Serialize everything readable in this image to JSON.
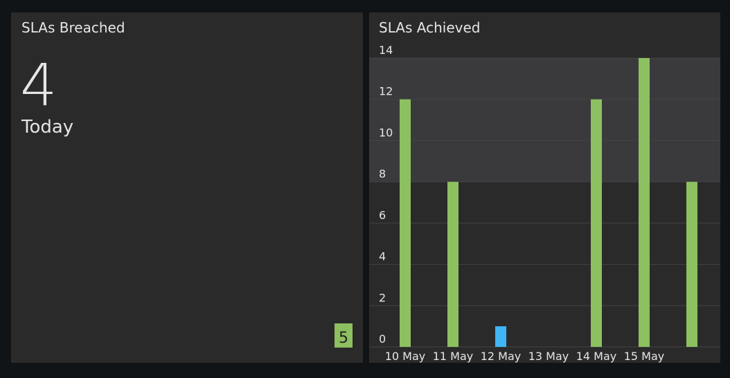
{
  "breached_panel": {
    "title": "SLAs Breached",
    "value": 4,
    "period": "Today",
    "badge": 5
  },
  "chart_data": {
    "type": "bar",
    "title": "SLAs Achieved",
    "categories": [
      "10 May",
      "11 May",
      "12 May",
      "13 May",
      "14 May",
      "15 May",
      null
    ],
    "values": [
      12,
      8,
      1,
      0,
      12,
      14,
      8
    ],
    "colors": [
      "#8dc060",
      "#8dc060",
      "#3fb5f5",
      "#8dc060",
      "#8dc060",
      "#8dc060",
      "#8dc060"
    ],
    "ylim": [
      0,
      14
    ],
    "yticks": [
      0,
      2,
      4,
      6,
      8,
      10,
      12,
      14
    ],
    "grid": true,
    "highlight_band": [
      8,
      14
    ]
  }
}
